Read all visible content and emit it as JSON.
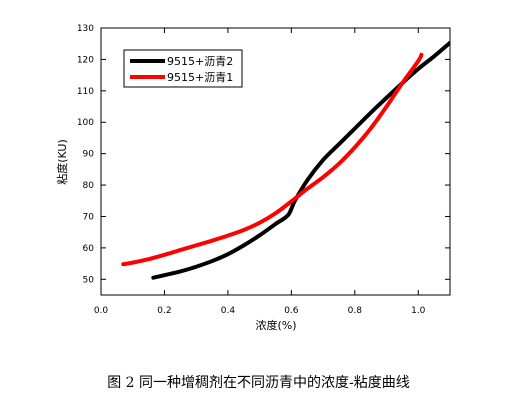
{
  "caption": "图 2  同一种增稠剂在不同沥青中的浓度-粘度曲线",
  "chart_data": {
    "type": "line",
    "title": "",
    "xlabel": "浓度(%)",
    "ylabel": "粘度(KU)",
    "xlim": [
      0.0,
      1.1
    ],
    "ylim": [
      45,
      130
    ],
    "xticks": [
      0.0,
      0.2,
      0.4,
      0.6,
      0.8,
      1.0
    ],
    "xtick_labels": [
      "0.0",
      "0.2",
      "0.4",
      "0.6",
      "0.8",
      "1.0"
    ],
    "yticks": [
      50,
      60,
      70,
      80,
      90,
      100,
      110,
      120,
      130
    ],
    "ytick_labels": [
      "50",
      "60",
      "70",
      "80",
      "90",
      "100",
      "110",
      "120",
      "130"
    ],
    "grid": false,
    "legend_position": "top-left",
    "series": [
      {
        "name": "9515+沥青2",
        "color": "#000000",
        "points": [
          [
            0.165,
            50.5
          ],
          [
            0.2,
            51.3
          ],
          [
            0.25,
            52.5
          ],
          [
            0.3,
            54.0
          ],
          [
            0.35,
            55.8
          ],
          [
            0.4,
            58.0
          ],
          [
            0.45,
            60.8
          ],
          [
            0.5,
            64.0
          ],
          [
            0.55,
            67.6
          ],
          [
            0.59,
            70.5
          ],
          [
            0.61,
            74.8
          ],
          [
            0.65,
            81.5
          ],
          [
            0.7,
            88.0
          ],
          [
            0.75,
            93.0
          ],
          [
            0.8,
            98.0
          ],
          [
            0.85,
            103.0
          ],
          [
            0.9,
            107.8
          ],
          [
            0.95,
            112.5
          ],
          [
            1.0,
            117.0
          ],
          [
            1.05,
            121.0
          ],
          [
            1.1,
            125.3
          ]
        ]
      },
      {
        "name": "9515+沥青1",
        "color": "#ff0000",
        "points": [
          [
            0.07,
            54.8
          ],
          [
            0.1,
            55.3
          ],
          [
            0.15,
            56.4
          ],
          [
            0.2,
            57.8
          ],
          [
            0.25,
            59.3
          ],
          [
            0.3,
            60.8
          ],
          [
            0.35,
            62.3
          ],
          [
            0.4,
            63.9
          ],
          [
            0.45,
            65.7
          ],
          [
            0.5,
            68.0
          ],
          [
            0.55,
            71.0
          ],
          [
            0.6,
            74.8
          ],
          [
            0.65,
            78.8
          ],
          [
            0.7,
            82.5
          ],
          [
            0.75,
            86.8
          ],
          [
            0.8,
            92.0
          ],
          [
            0.85,
            98.0
          ],
          [
            0.9,
            105.0
          ],
          [
            0.95,
            112.5
          ],
          [
            1.0,
            119.5
          ],
          [
            1.01,
            121.5
          ]
        ]
      }
    ]
  }
}
